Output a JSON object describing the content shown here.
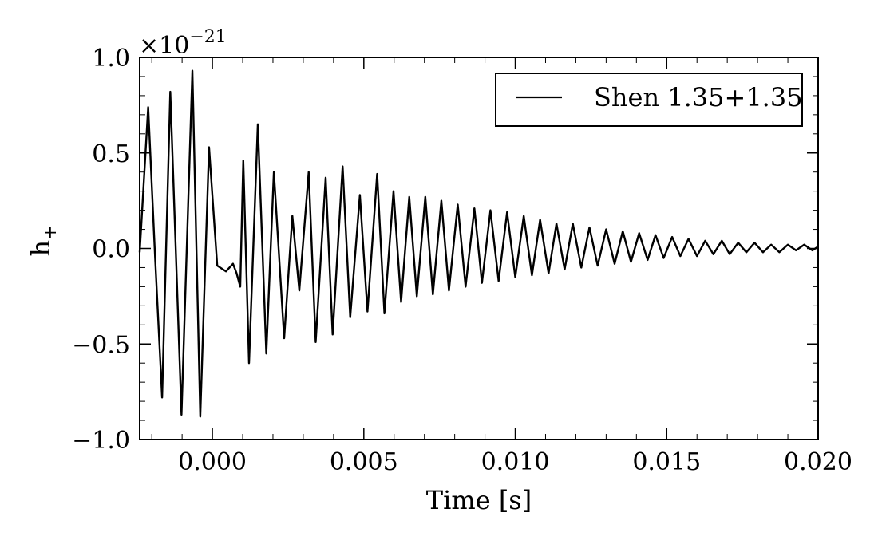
{
  "chart_data": {
    "type": "line",
    "title": "",
    "xlabel": "Time [s]",
    "ylabel_main": "h",
    "ylabel_sub": "+",
    "offset_base": "×10",
    "offset_exp": "−21",
    "xlim": [
      -0.0024,
      0.02
    ],
    "ylim": [
      -1.0,
      1.0
    ],
    "x_ticks": [
      0.0,
      0.005,
      0.01,
      0.015,
      0.02
    ],
    "x_tick_labels": [
      "0.000",
      "0.005",
      "0.010",
      "0.015",
      "0.020"
    ],
    "y_ticks": [
      -1.0,
      -0.5,
      0.0,
      0.5,
      1.0
    ],
    "y_tick_labels": [
      "−1.0",
      "−0.5",
      "0.0",
      "0.5",
      "1.0"
    ],
    "grid": false,
    "legend_position": "top-right",
    "series": [
      {
        "name": "Shen 1.35+1.35",
        "color": "#000000",
        "x": [
          -0.0024,
          -0.00212,
          -0.00189,
          -0.00166,
          -0.00139,
          -0.00102,
          -0.00066,
          -0.0004,
          -0.00011,
          0.00016,
          0.00045,
          0.00068,
          0.0008,
          0.00092,
          0.00102,
          0.00121,
          0.0015,
          0.00178,
          0.00203,
          0.00237,
          0.00264,
          0.00287,
          0.00318,
          0.00341,
          0.00374,
          0.00397,
          0.0043,
          0.00455,
          0.00487,
          0.00512,
          0.00544,
          0.00568,
          0.00598,
          0.00623,
          0.0065,
          0.00675,
          0.00703,
          0.00728,
          0.00756,
          0.00781,
          0.0081,
          0.00836,
          0.00865,
          0.0089,
          0.00918,
          0.00945,
          0.00973,
          0.01,
          0.01028,
          0.01055,
          0.01082,
          0.0111,
          0.01136,
          0.01163,
          0.0119,
          0.01218,
          0.01245,
          0.01272,
          0.013,
          0.01328,
          0.01355,
          0.01382,
          0.01409,
          0.01437,
          0.01463,
          0.0149,
          0.01518,
          0.01545,
          0.01572,
          0.016,
          0.01627,
          0.01654,
          0.01682,
          0.01708,
          0.01736,
          0.01763,
          0.0179,
          0.01818,
          0.01845,
          0.01872,
          0.019,
          0.01927,
          0.01954,
          0.01981,
          0.02
        ],
        "y": [
          -0.02,
          0.74,
          -0.05,
          -0.78,
          0.82,
          -0.87,
          0.93,
          -0.88,
          0.53,
          -0.09,
          -0.12,
          -0.08,
          -0.13,
          -0.2,
          0.46,
          -0.6,
          0.65,
          -0.55,
          0.4,
          -0.47,
          0.17,
          -0.22,
          0.4,
          -0.49,
          0.37,
          -0.45,
          0.43,
          -0.36,
          0.28,
          -0.33,
          0.39,
          -0.34,
          0.3,
          -0.28,
          0.27,
          -0.25,
          0.27,
          -0.24,
          0.25,
          -0.22,
          0.23,
          -0.2,
          0.21,
          -0.18,
          0.2,
          -0.17,
          0.19,
          -0.15,
          0.17,
          -0.14,
          0.15,
          -0.13,
          0.13,
          -0.11,
          0.13,
          -0.1,
          0.11,
          -0.09,
          0.1,
          -0.08,
          0.09,
          -0.07,
          0.08,
          -0.06,
          0.07,
          -0.05,
          0.06,
          -0.04,
          0.05,
          -0.04,
          0.04,
          -0.03,
          0.04,
          -0.03,
          0.03,
          -0.02,
          0.03,
          -0.02,
          0.02,
          -0.02,
          0.02,
          -0.01,
          0.02,
          -0.01,
          0.01
        ]
      }
    ]
  }
}
